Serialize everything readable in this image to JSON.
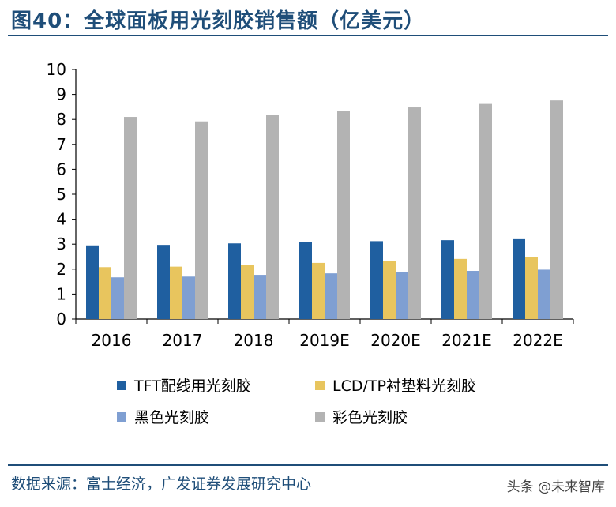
{
  "header": {
    "title": "图40：全球面板用光刻胶销售额（亿美元）"
  },
  "chart_data": {
    "type": "bar",
    "title": "全球面板用光刻胶销售额（亿美元）",
    "categories": [
      "2016",
      "2017",
      "2018",
      "2019E",
      "2020E",
      "2021E",
      "2022E"
    ],
    "yticks": [
      "0",
      "1",
      "2",
      "3",
      "4",
      "5",
      "6",
      "7",
      "8",
      "9",
      "10"
    ],
    "ylim": [
      0,
      10
    ],
    "grid": false,
    "legend_position": "bottom",
    "series": [
      {
        "name": "TFT配线用光刻胶",
        "color": "#1f5fa0",
        "values": [
          2.95,
          2.97,
          3.03,
          3.08,
          3.12,
          3.16,
          3.2
        ]
      },
      {
        "name": "LCD/TP衬垫料光刻胶",
        "color": "#e8c55e",
        "values": [
          2.08,
          2.1,
          2.18,
          2.25,
          2.33,
          2.41,
          2.49
        ]
      },
      {
        "name": "黑色光刻胶",
        "color": "#7f9fd2",
        "values": [
          1.67,
          1.7,
          1.77,
          1.83,
          1.88,
          1.93,
          1.98
        ]
      },
      {
        "name": "彩色光刻胶",
        "color": "#b3b3b3",
        "values": [
          8.1,
          7.92,
          8.17,
          8.33,
          8.48,
          8.62,
          8.76
        ]
      }
    ]
  },
  "footer": {
    "source": "数据来源：富士经济，广发证券发展研究中心",
    "watermark": "头条 @未来智库"
  }
}
